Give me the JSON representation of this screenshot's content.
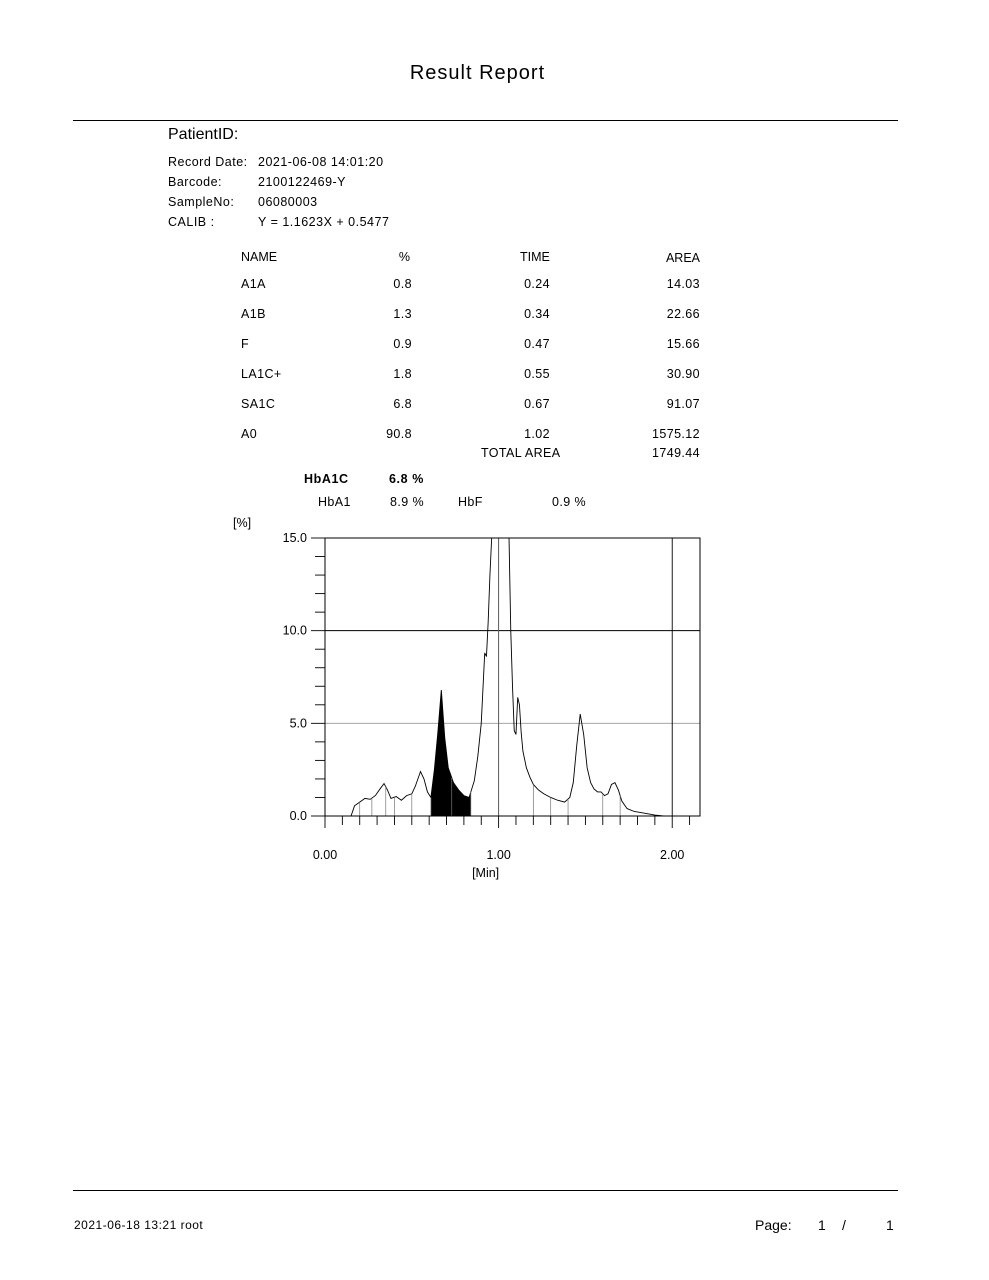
{
  "report": {
    "title": "Result Report"
  },
  "patient": {
    "patient_id_label": "PatientID:",
    "record_date_label": "Record Date:",
    "record_date": "2021-06-08 14:01:20",
    "barcode_label": "Barcode:",
    "barcode": "2100122469-Y",
    "sample_label": "SampleNo:",
    "sample_no": "06080003",
    "calib_label": "CALIB :",
    "calib": "Y = 1.1623X + 0.5477"
  },
  "table": {
    "headers": [
      "NAME",
      "%",
      "TIME",
      "AREA"
    ],
    "rows": [
      {
        "name": "A1A",
        "pct": "0.8",
        "time": "0.24",
        "area": "14.03"
      },
      {
        "name": "A1B",
        "pct": "1.3",
        "time": "0.34",
        "area": "22.66"
      },
      {
        "name": "F",
        "pct": "0.9",
        "time": "0.47",
        "area": "15.66"
      },
      {
        "name": "LA1C+",
        "pct": "1.8",
        "time": "0.55",
        "area": "30.90"
      },
      {
        "name": "SA1C",
        "pct": "6.8",
        "time": "0.67",
        "area": "91.07"
      },
      {
        "name": "A0",
        "pct": "90.8",
        "time": "1.02",
        "area": "1575.12"
      }
    ],
    "total_label": "TOTAL AREA",
    "total_value": "1749.44"
  },
  "summary": {
    "hba1c_label": "HbA1C",
    "hba1c_value": "6.8 %",
    "hba1_label": "HbA1",
    "hba1_value": "8.9 %",
    "hbf_label": "HbF",
    "hbf_value": "0.9 %"
  },
  "chart_data": {
    "type": "line",
    "ylabel": "[%]",
    "xlabel": "[Min]",
    "xlim": [
      0,
      2.16
    ],
    "ylim": [
      0,
      15
    ],
    "x_ticks": [
      "0.00",
      "1.00",
      "2.00"
    ],
    "y_ticks": [
      "0.0",
      "5.0",
      "10.0",
      "15.0"
    ],
    "x_tick_values": [
      0,
      1,
      2
    ],
    "y_tick_values": [
      0,
      5,
      10,
      15
    ],
    "peak_markers": [
      0.15,
      0.2,
      0.27,
      0.35,
      0.4,
      0.5,
      0.61,
      0.73,
      0.84,
      1.0,
      1.2,
      1.3,
      1.4,
      1.6,
      1.7
    ],
    "shaded_range": [
      0.61,
      0.84
    ],
    "x": [
      0.15,
      0.17,
      0.2,
      0.23,
      0.26,
      0.29,
      0.32,
      0.34,
      0.36,
      0.38,
      0.41,
      0.44,
      0.47,
      0.5,
      0.52,
      0.55,
      0.57,
      0.59,
      0.61,
      0.63,
      0.65,
      0.67,
      0.69,
      0.71,
      0.74,
      0.77,
      0.8,
      0.83,
      0.86,
      0.88,
      0.9,
      0.92,
      0.93,
      0.94,
      0.95,
      0.96,
      0.97,
      0.98,
      0.99,
      1.0,
      1.01,
      1.02,
      1.03,
      1.04,
      1.05,
      1.06,
      1.07,
      1.08,
      1.09,
      1.1,
      1.11,
      1.12,
      1.13,
      1.14,
      1.16,
      1.18,
      1.2,
      1.23,
      1.26,
      1.3,
      1.34,
      1.38,
      1.41,
      1.43,
      1.45,
      1.47,
      1.49,
      1.51,
      1.53,
      1.55,
      1.57,
      1.59,
      1.61,
      1.63,
      1.65,
      1.67,
      1.69,
      1.71,
      1.74,
      1.78,
      1.84,
      1.9,
      1.95
    ],
    "y": [
      0.0,
      0.55,
      0.75,
      0.95,
      0.9,
      1.1,
      1.5,
      1.75,
      1.4,
      0.95,
      1.05,
      0.85,
      1.1,
      1.2,
      1.6,
      2.4,
      2.0,
      1.3,
      1.0,
      2.5,
      4.5,
      6.8,
      4.2,
      2.6,
      1.8,
      1.4,
      1.1,
      1.0,
      1.9,
      3.2,
      5.0,
      8.8,
      8.6,
      10.5,
      13.0,
      15.0,
      15.0,
      15.0,
      15.0,
      15.0,
      15.0,
      15.0,
      15.0,
      15.0,
      15.0,
      15.0,
      10.0,
      7.0,
      4.6,
      4.4,
      6.4,
      6.0,
      4.5,
      3.5,
      2.6,
      2.1,
      1.7,
      1.4,
      1.2,
      1.0,
      0.85,
      0.75,
      1.0,
      1.8,
      3.8,
      5.5,
      4.4,
      2.6,
      1.8,
      1.45,
      1.3,
      1.3,
      1.1,
      1.2,
      1.7,
      1.8,
      1.4,
      0.8,
      0.4,
      0.25,
      0.15,
      0.05,
      0.0
    ]
  },
  "footer": {
    "printed": "2021-06-18 13:21 root",
    "page_label": "Page:",
    "page_current": "1",
    "page_sep": "/",
    "page_total": "1"
  }
}
